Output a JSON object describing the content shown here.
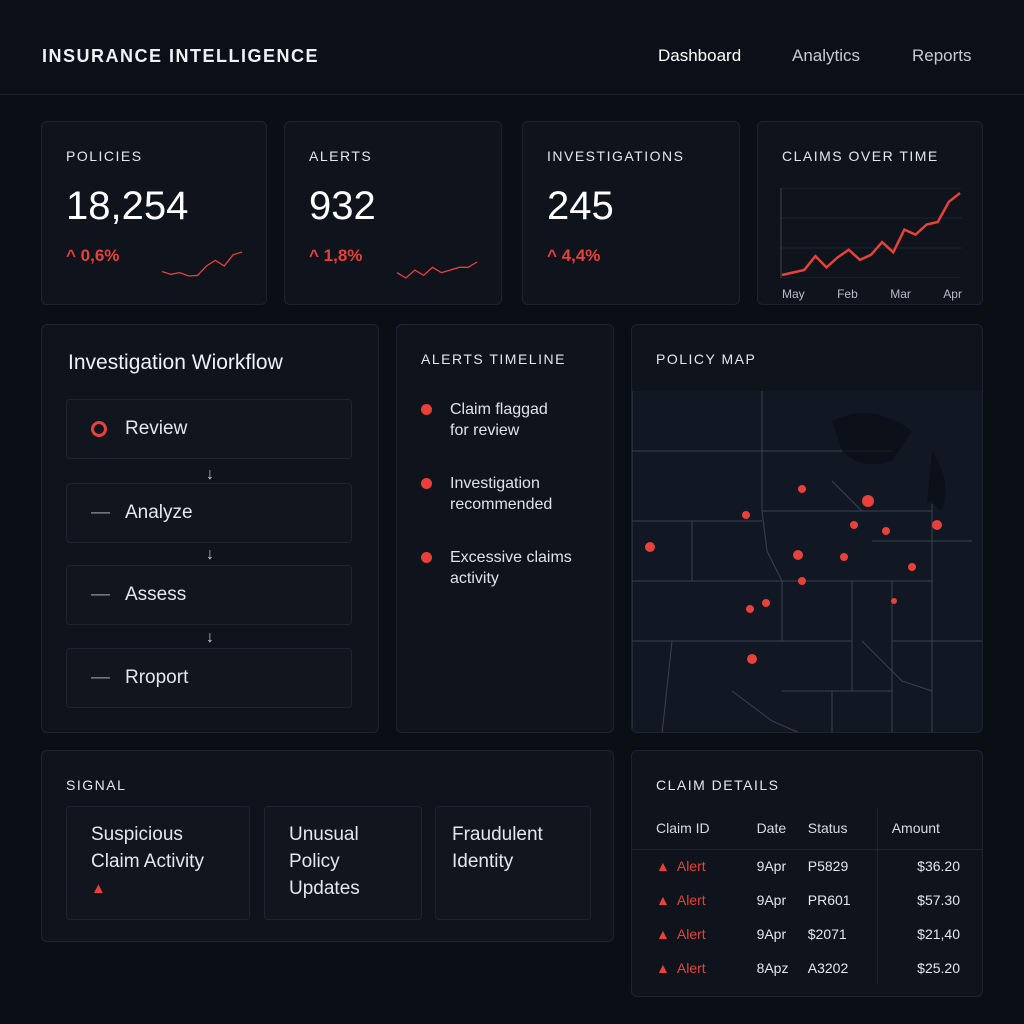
{
  "header": {
    "title": "INSURANCE INTELLIGENCE",
    "nav": [
      {
        "label": "Dashboard",
        "active": true
      },
      {
        "label": "Analytics"
      },
      {
        "label": "Reports"
      }
    ]
  },
  "kpis": [
    {
      "title": "POLICIES",
      "value": "18,254",
      "delta": "0,6%",
      "trend": [
        2,
        1.5,
        1.8,
        1.2,
        1.3,
        3,
        4,
        3,
        5,
        5.5
      ]
    },
    {
      "title": "ALERTS",
      "value": "932",
      "delta": "1,8%",
      "trend": [
        2,
        1,
        2.5,
        1.5,
        3,
        2,
        2.5,
        3,
        3,
        4
      ]
    },
    {
      "title": "INVESTIGATIONS",
      "value": "245",
      "delta": "4,4%"
    }
  ],
  "claims_chart": {
    "title": "CLAIMS OVER TIME",
    "x_labels": [
      "May",
      "Feb",
      "Mar",
      "Apr"
    ],
    "values": [
      1,
      1.2,
      1.4,
      2.5,
      1.6,
      2.4,
      3,
      2.2,
      2.6,
      3.6,
      2.8,
      4.6,
      4.2,
      5,
      5.2,
      6.8,
      7.5
    ]
  },
  "workflow": {
    "title": "Investigation Wiorkflow",
    "steps": [
      "Review",
      "Analyze",
      "Assess",
      "Rroport"
    ],
    "arrow": "↓"
  },
  "timeline": {
    "title": "ALERTS TIMELINE",
    "items": [
      {
        "l1": "Claim flaggad",
        "l2": "for review"
      },
      {
        "l1": "Investigation",
        "l2": "recommended"
      },
      {
        "l1": "Excessive claims",
        "l2": "activity"
      }
    ]
  },
  "map": {
    "title": "POLICY MAP"
  },
  "signal": {
    "title": "SIGNAL",
    "cards": [
      {
        "text": "Suspicious Claim Activity",
        "alert": true
      },
      {
        "text": "Unusual Policy Updates"
      },
      {
        "text": "Fraudulent Identity"
      }
    ]
  },
  "claims": {
    "title": "CLAIM DETAILS",
    "columns": [
      "Claim ID",
      "Date",
      "Status",
      "Amount"
    ],
    "rows": [
      {
        "id": "Alert",
        "date": "9Apr",
        "status": "P5829",
        "amount": "$36.20"
      },
      {
        "id": "Alert",
        "date": "9Apr",
        "status": "PR601",
        "amount": "$57.30"
      },
      {
        "id": "Alert",
        "date": "9Apr",
        "status": "$2071",
        "amount": "$21,40"
      },
      {
        "id": "Alert",
        "date": "8Apz",
        "status": "A3202",
        "amount": "$25.20"
      }
    ]
  },
  "colors": {
    "accent": "#e8403a",
    "background": "#0a0e15",
    "card": "#0e131c"
  }
}
